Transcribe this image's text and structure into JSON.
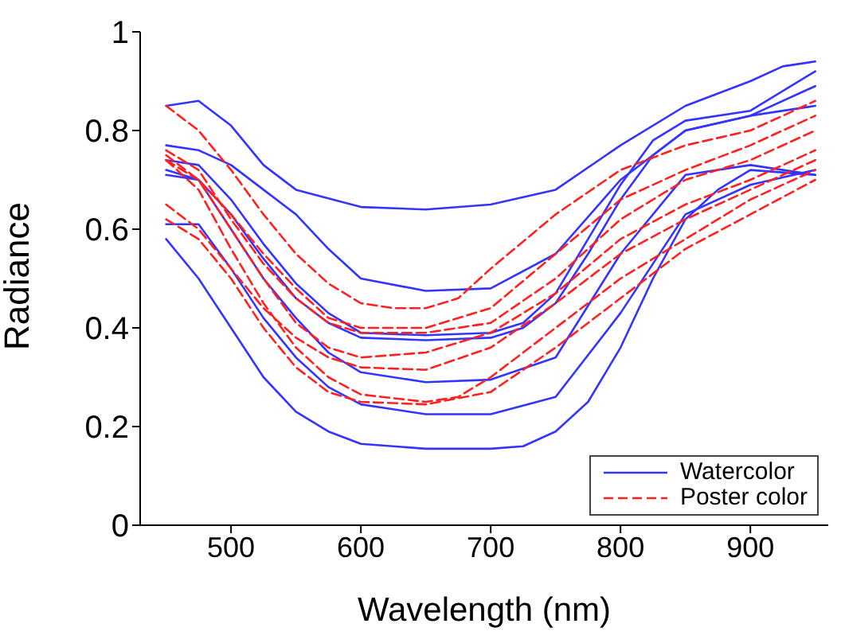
{
  "chart_data": {
    "type": "line",
    "xlabel": "Wavelength (nm)",
    "ylabel": "Radiance",
    "xlim": [
      430,
      960
    ],
    "xticks": [
      500,
      600,
      700,
      800,
      900
    ],
    "ylim": [
      0,
      1
    ],
    "yticks": [
      0,
      0.2,
      0.4,
      0.6,
      0.8,
      1
    ],
    "grid": false,
    "legend": "bottom right",
    "marker": "none",
    "series": [
      {
        "name": "Watercolor",
        "color": "#3434ff",
        "line_style": "solid",
        "x": [
          450,
          475,
          500,
          525,
          550,
          600,
          650,
          700,
          750,
          800,
          850,
          900,
          925,
          950
        ],
        "values": [
          0.85,
          0.86,
          0.81,
          0.73,
          0.68,
          0.645,
          0.64,
          0.65,
          0.68,
          0.77,
          0.85,
          0.9,
          0.93,
          0.94
        ]
      },
      {
        "color": "#3434ff",
        "line_style": "solid",
        "x": [
          450,
          475,
          500,
          525,
          550,
          575,
          600,
          650,
          700,
          750,
          800,
          850,
          900,
          950
        ],
        "values": [
          0.77,
          0.76,
          0.73,
          0.68,
          0.63,
          0.56,
          0.5,
          0.475,
          0.48,
          0.55,
          0.7,
          0.8,
          0.83,
          0.89
        ]
      },
      {
        "color": "#3434ff",
        "line_style": "solid",
        "x": [
          450,
          475,
          500,
          525,
          550,
          575,
          600,
          650,
          700,
          725,
          750,
          775,
          800,
          825,
          850,
          900,
          950
        ],
        "values": [
          0.74,
          0.73,
          0.66,
          0.57,
          0.49,
          0.43,
          0.39,
          0.385,
          0.39,
          0.41,
          0.47,
          0.58,
          0.69,
          0.78,
          0.82,
          0.84,
          0.92
        ]
      },
      {
        "color": "#3434ff",
        "line_style": "solid",
        "x": [
          450,
          475,
          500,
          525,
          550,
          575,
          600,
          650,
          700,
          725,
          750,
          775,
          800,
          825,
          850,
          900,
          950
        ],
        "values": [
          0.72,
          0.7,
          0.63,
          0.54,
          0.46,
          0.41,
          0.38,
          0.375,
          0.38,
          0.4,
          0.45,
          0.55,
          0.66,
          0.75,
          0.8,
          0.83,
          0.85
        ]
      },
      {
        "color": "#3434ff",
        "line_style": "solid",
        "x": [
          450,
          475,
          500,
          525,
          550,
          575,
          600,
          650,
          700,
          750,
          800,
          850,
          900,
          950
        ],
        "values": [
          0.71,
          0.7,
          0.6,
          0.5,
          0.42,
          0.35,
          0.31,
          0.29,
          0.295,
          0.34,
          0.55,
          0.71,
          0.73,
          0.71
        ]
      },
      {
        "color": "#3434ff",
        "line_style": "solid",
        "x": [
          450,
          475,
          500,
          525,
          550,
          575,
          600,
          650,
          700,
          750,
          800,
          850,
          900,
          950
        ],
        "values": [
          0.61,
          0.61,
          0.52,
          0.42,
          0.34,
          0.28,
          0.245,
          0.225,
          0.225,
          0.26,
          0.43,
          0.63,
          0.69,
          0.72
        ]
      },
      {
        "color": "#3434ff",
        "line_style": "solid",
        "x": [
          450,
          475,
          500,
          525,
          550,
          575,
          600,
          650,
          700,
          725,
          750,
          775,
          800,
          825,
          850,
          875,
          900,
          950
        ],
        "values": [
          0.58,
          0.5,
          0.4,
          0.3,
          0.23,
          0.19,
          0.165,
          0.155,
          0.155,
          0.16,
          0.19,
          0.25,
          0.36,
          0.5,
          0.62,
          0.68,
          0.72,
          0.71
        ]
      },
      {
        "name": "Poster color",
        "color": "#ff2020",
        "line_style": "dashed",
        "x": [
          450,
          475,
          500,
          525,
          550,
          575,
          600,
          625,
          650,
          675,
          700,
          750,
          800,
          850,
          900,
          950
        ],
        "values": [
          0.85,
          0.8,
          0.72,
          0.63,
          0.55,
          0.49,
          0.45,
          0.44,
          0.44,
          0.46,
          0.52,
          0.63,
          0.72,
          0.77,
          0.8,
          0.86
        ]
      },
      {
        "color": "#ff2020",
        "line_style": "dashed",
        "x": [
          450,
          475,
          500,
          525,
          550,
          575,
          600,
          650,
          700,
          750,
          800,
          850,
          900,
          950
        ],
        "values": [
          0.75,
          0.7,
          0.63,
          0.55,
          0.48,
          0.42,
          0.4,
          0.4,
          0.44,
          0.55,
          0.66,
          0.72,
          0.77,
          0.83
        ]
      },
      {
        "color": "#ff2020",
        "line_style": "dashed",
        "x": [
          450,
          475,
          500,
          525,
          550,
          575,
          600,
          650,
          700,
          750,
          800,
          850,
          900,
          950
        ],
        "values": [
          0.76,
          0.72,
          0.62,
          0.53,
          0.46,
          0.41,
          0.39,
          0.39,
          0.41,
          0.5,
          0.62,
          0.7,
          0.74,
          0.8
        ]
      },
      {
        "color": "#ff2020",
        "line_style": "dashed",
        "x": [
          450,
          475,
          500,
          525,
          550,
          575,
          600,
          650,
          700,
          750,
          800,
          850,
          900,
          950
        ],
        "values": [
          0.65,
          0.6,
          0.52,
          0.44,
          0.38,
          0.34,
          0.32,
          0.315,
          0.36,
          0.45,
          0.55,
          0.62,
          0.68,
          0.74
        ]
      },
      {
        "color": "#ff2020",
        "line_style": "dashed",
        "x": [
          450,
          475,
          500,
          525,
          550,
          575,
          600,
          650,
          675,
          700,
          750,
          800,
          850,
          900,
          950
        ],
        "values": [
          0.74,
          0.68,
          0.56,
          0.45,
          0.36,
          0.3,
          0.265,
          0.25,
          0.26,
          0.3,
          0.4,
          0.5,
          0.58,
          0.66,
          0.72
        ]
      },
      {
        "color": "#ff2020",
        "line_style": "dashed",
        "x": [
          450,
          475,
          500,
          525,
          550,
          575,
          600,
          650,
          700,
          750,
          800,
          850,
          900,
          950
        ],
        "values": [
          0.62,
          0.58,
          0.5,
          0.4,
          0.32,
          0.27,
          0.25,
          0.245,
          0.27,
          0.36,
          0.46,
          0.56,
          0.63,
          0.7
        ]
      },
      {
        "color": "#ff2020",
        "line_style": "dashed",
        "x": [
          450,
          475,
          500,
          525,
          550,
          575,
          600,
          650,
          700,
          750,
          800,
          850,
          900,
          950
        ],
        "values": [
          0.74,
          0.7,
          0.6,
          0.5,
          0.41,
          0.36,
          0.34,
          0.35,
          0.39,
          0.47,
          0.58,
          0.65,
          0.7,
          0.76
        ]
      }
    ]
  }
}
